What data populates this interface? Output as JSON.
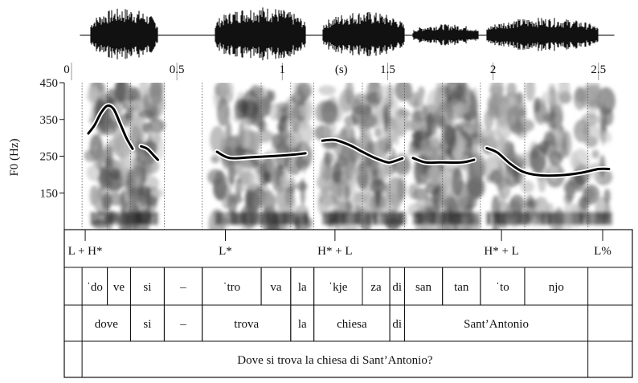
{
  "time_axis": {
    "unit_label": "(s)",
    "min": 0,
    "max": 2.6,
    "ticks": [
      {
        "value": 0,
        "label": "0"
      },
      {
        "value": 0.5,
        "label": "0.5"
      },
      {
        "value": 1,
        "label": "1"
      },
      {
        "value": 1.5,
        "label": "1.5"
      },
      {
        "value": 2,
        "label": "2"
      },
      {
        "value": 2.5,
        "label": "2.5"
      }
    ]
  },
  "f0_axis": {
    "label": "F0 (Hz)",
    "min": 50,
    "max": 450,
    "ticks": [
      {
        "value": 450,
        "label": "450"
      },
      {
        "value": 350,
        "label": "350"
      },
      {
        "value": 250,
        "label": "250"
      },
      {
        "value": 150,
        "label": "150"
      }
    ]
  },
  "chart_data": {
    "type": "line",
    "title": "",
    "xlabel": "(s)",
    "ylabel": "F0 (Hz)",
    "xlim": [
      0,
      2.6
    ],
    "ylim": [
      50,
      450
    ],
    "series": [
      {
        "name": "",
        "points": [
          [
            0.08,
            312
          ],
          [
            0.11,
            335
          ],
          [
            0.14,
            368
          ],
          [
            0.17,
            387
          ],
          [
            0.2,
            378
          ],
          [
            0.23,
            340
          ],
          [
            0.26,
            300
          ],
          [
            0.29,
            270
          ]
        ]
      },
      {
        "name": "",
        "points": [
          [
            0.33,
            277
          ],
          [
            0.36,
            270
          ],
          [
            0.39,
            252
          ],
          [
            0.41,
            240
          ]
        ]
      },
      {
        "name": "",
        "points": [
          [
            0.69,
            262
          ],
          [
            0.75,
            245
          ],
          [
            0.85,
            247
          ],
          [
            0.95,
            250
          ],
          [
            1.05,
            254
          ],
          [
            1.11,
            258
          ]
        ]
      },
      {
        "name": "",
        "points": [
          [
            1.19,
            292
          ],
          [
            1.25,
            294
          ],
          [
            1.32,
            280
          ],
          [
            1.38,
            262
          ],
          [
            1.44,
            245
          ],
          [
            1.5,
            233
          ],
          [
            1.53,
            236
          ],
          [
            1.57,
            244
          ]
        ]
      },
      {
        "name": "",
        "points": [
          [
            1.62,
            245
          ],
          [
            1.68,
            233
          ],
          [
            1.75,
            233
          ],
          [
            1.85,
            233
          ],
          [
            1.91,
            240
          ]
        ]
      },
      {
        "name": "",
        "points": [
          [
            1.97,
            272
          ],
          [
            2.02,
            260
          ],
          [
            2.08,
            230
          ],
          [
            2.14,
            208
          ],
          [
            2.22,
            198
          ],
          [
            2.32,
            198
          ],
          [
            2.42,
            205
          ],
          [
            2.5,
            215
          ],
          [
            2.55,
            215
          ]
        ]
      }
    ]
  },
  "tiers": {
    "tones": [
      {
        "t": 0.065,
        "label": "L + H*"
      },
      {
        "t": 0.73,
        "label": "L*"
      },
      {
        "t": 1.25,
        "label": "H* + L"
      },
      {
        "t": 2.04,
        "label": "H* + L"
      },
      {
        "t": 2.52,
        "label": "L%"
      }
    ],
    "syllables": [
      {
        "start": 0.05,
        "end": 0.17,
        "stress": "ˈ",
        "label": "do"
      },
      {
        "start": 0.17,
        "end": 0.28,
        "stress": "",
        "label": "ve"
      },
      {
        "start": 0.28,
        "end": 0.44,
        "stress": "",
        "label": "si"
      },
      {
        "start": 0.44,
        "end": 0.62,
        "stress": "",
        "label": "–"
      },
      {
        "start": 0.62,
        "end": 0.9,
        "stress": "ˈ",
        "label": "tro"
      },
      {
        "start": 0.9,
        "end": 1.04,
        "stress": "",
        "label": "va"
      },
      {
        "start": 1.04,
        "end": 1.15,
        "stress": "",
        "label": "la"
      },
      {
        "start": 1.15,
        "end": 1.38,
        "stress": "ˈ",
        "label": "kje"
      },
      {
        "start": 1.38,
        "end": 1.51,
        "stress": "",
        "label": "za"
      },
      {
        "start": 1.51,
        "end": 1.58,
        "stress": "",
        "label": "di"
      },
      {
        "start": 1.58,
        "end": 1.76,
        "stress": "",
        "label": "san"
      },
      {
        "start": 1.76,
        "end": 1.94,
        "stress": "",
        "label": "tan"
      },
      {
        "start": 1.94,
        "end": 2.15,
        "stress": "ˈ",
        "label": "to"
      },
      {
        "start": 2.15,
        "end": 2.45,
        "stress": "",
        "label": "njo"
      }
    ],
    "words": [
      {
        "start": 0.05,
        "end": 0.28,
        "label": "dove"
      },
      {
        "start": 0.28,
        "end": 0.44,
        "label": "si"
      },
      {
        "start": 0.44,
        "end": 0.62,
        "label": "–"
      },
      {
        "start": 0.62,
        "end": 1.04,
        "label": "trova"
      },
      {
        "start": 1.04,
        "end": 1.15,
        "label": "la"
      },
      {
        "start": 1.15,
        "end": 1.51,
        "label": "chiesa"
      },
      {
        "start": 1.51,
        "end": 1.58,
        "label": "di"
      },
      {
        "start": 1.58,
        "end": 2.45,
        "label": "Sant’Antonio"
      }
    ],
    "sentence": {
      "start": 0.05,
      "end": 2.45,
      "label": "Dove si trova la chiesa di Sant’Antonio?"
    }
  }
}
